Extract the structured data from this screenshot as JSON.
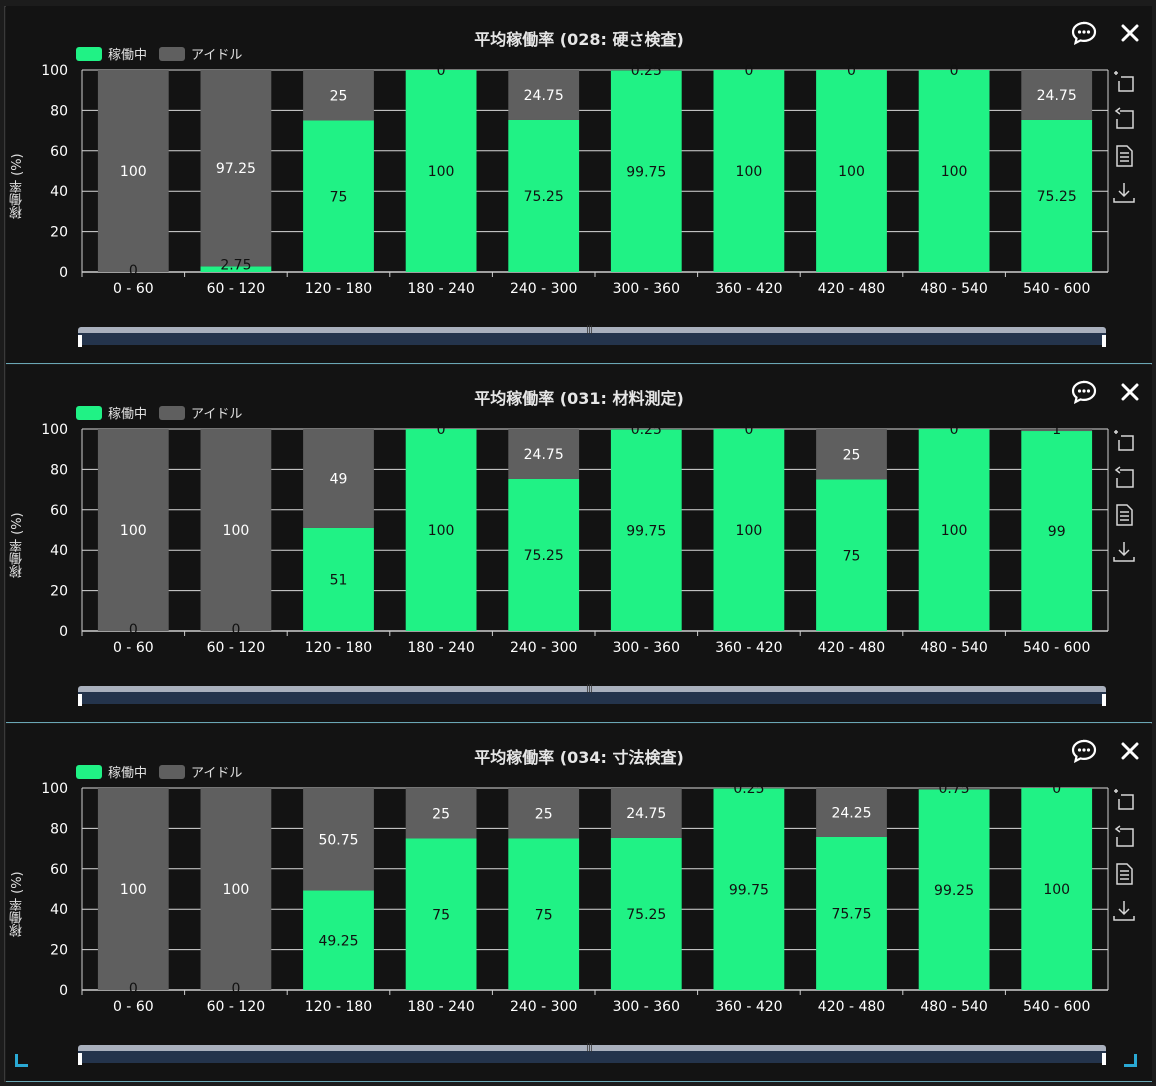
{
  "legend": {
    "running": "稼働中",
    "idle": "アイドル"
  },
  "colors": {
    "running": "#20f285",
    "idle": "#5f5f5f",
    "grid": "#d8d8d8",
    "axis": "#cfcfcf",
    "label_dark": "#111111",
    "label_light": "#ffffff"
  },
  "icons": {
    "chat": "chat-bubble-icon",
    "close": "close-icon",
    "tools": [
      "zoom-select-icon",
      "zoom-reset-icon",
      "data-view-icon",
      "download-icon"
    ]
  },
  "chart_data": [
    {
      "type": "bar",
      "stacked": true,
      "title": "平均稼働率 (028: 硬さ検査)",
      "ylabel": "稼働率 (%)",
      "ylim": [
        0,
        100
      ],
      "yticks": [
        "0",
        "20",
        "40",
        "60",
        "80",
        "100"
      ],
      "legend_position": "top-left",
      "categories": [
        "0 - 60",
        "60 - 120",
        "120 - 180",
        "180 - 240",
        "240 - 300",
        "300 - 360",
        "360 - 420",
        "420 - 480",
        "480 - 540",
        "540 - 600"
      ],
      "series": [
        {
          "name": "稼働中",
          "values": [
            0,
            2.75,
            75,
            100,
            75.25,
            99.75,
            100,
            100,
            100,
            75.25
          ]
        },
        {
          "name": "アイドル",
          "values": [
            100,
            97.25,
            25,
            0,
            24.75,
            0.25,
            0,
            0,
            0,
            24.75
          ]
        }
      ]
    },
    {
      "type": "bar",
      "stacked": true,
      "title": "平均稼働率 (031: 材料測定)",
      "ylabel": "稼働率 (%)",
      "ylim": [
        0,
        100
      ],
      "yticks": [
        "0",
        "20",
        "40",
        "60",
        "80",
        "100"
      ],
      "legend_position": "top-left",
      "categories": [
        "0 - 60",
        "60 - 120",
        "120 - 180",
        "180 - 240",
        "240 - 300",
        "300 - 360",
        "360 - 420",
        "420 - 480",
        "480 - 540",
        "540 - 600"
      ],
      "series": [
        {
          "name": "稼働中",
          "values": [
            0,
            0,
            51,
            100,
            75.25,
            99.75,
            100,
            75,
            100,
            99
          ]
        },
        {
          "name": "アイドル",
          "values": [
            100,
            100,
            49,
            0,
            24.75,
            0.25,
            0,
            25,
            0,
            1
          ]
        }
      ]
    },
    {
      "type": "bar",
      "stacked": true,
      "title": "平均稼働率 (034: 寸法検査)",
      "ylabel": "稼働率 (%)",
      "ylim": [
        0,
        100
      ],
      "yticks": [
        "0",
        "20",
        "40",
        "60",
        "80",
        "100"
      ],
      "legend_position": "top-left",
      "categories": [
        "0 - 60",
        "60 - 120",
        "120 - 180",
        "180 - 240",
        "240 - 300",
        "300 - 360",
        "360 - 420",
        "420 - 480",
        "480 - 540",
        "540 - 600"
      ],
      "series": [
        {
          "name": "稼働中",
          "values": [
            0,
            0,
            49.25,
            75,
            75,
            75.25,
            99.75,
            75.75,
            99.25,
            100
          ]
        },
        {
          "name": "アイドル",
          "values": [
            100,
            100,
            50.75,
            25,
            25,
            24.75,
            0.25,
            24.25,
            0.75,
            0
          ]
        }
      ]
    }
  ]
}
